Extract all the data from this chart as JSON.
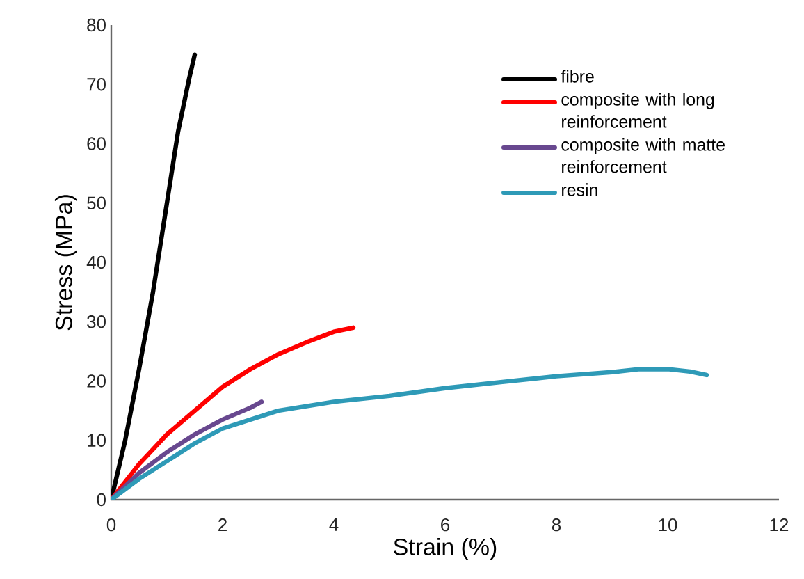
{
  "chart_data": {
    "type": "line",
    "xlabel": "Strain (%)",
    "ylabel": "Stress (MPa)",
    "xlim": [
      0,
      12
    ],
    "xticks": [
      0,
      2,
      4,
      6,
      8,
      10,
      12
    ],
    "ylim": [
      0,
      80
    ],
    "yticks": [
      0,
      10,
      20,
      30,
      40,
      50,
      60,
      70,
      80
    ],
    "grid": false,
    "legend": "top right",
    "marker": "none",
    "line_style": "solid",
    "series": [
      {
        "name": "fibre",
        "color": "#000000",
        "x": [
          0,
          0.25,
          0.5,
          0.75,
          1.0,
          1.2,
          1.4,
          1.5
        ],
        "values": [
          0,
          10,
          22,
          35,
          50,
          62,
          71,
          75
        ]
      },
      {
        "name": "composite with long reinforcement",
        "color": "#ff0000",
        "x": [
          0,
          0.5,
          1,
          1.5,
          2,
          2.5,
          3,
          3.5,
          4,
          4.35
        ],
        "values": [
          0,
          6,
          11,
          15,
          19,
          22,
          24.5,
          26.5,
          28.3,
          29
        ]
      },
      {
        "name": "composite with matte reinforcement",
        "color": "#68488f",
        "x": [
          0,
          0.5,
          1,
          1.5,
          2,
          2.5,
          2.7
        ],
        "values": [
          0,
          4.5,
          8,
          11,
          13.5,
          15.5,
          16.5
        ]
      },
      {
        "name": "resin",
        "color": "#2e9ab7",
        "x": [
          0,
          0.5,
          1,
          1.5,
          2,
          2.5,
          3,
          4,
          5,
          6,
          7,
          8,
          9,
          9.5,
          10,
          10.4,
          10.7
        ],
        "values": [
          0,
          3.5,
          6.5,
          9.5,
          12,
          13.5,
          15,
          16.5,
          17.5,
          18.8,
          19.8,
          20.8,
          21.5,
          22,
          22,
          21.6,
          21
        ]
      }
    ]
  }
}
